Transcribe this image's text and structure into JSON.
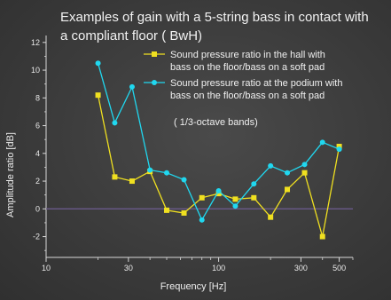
{
  "chart_data": {
    "type": "line",
    "title_lines": [
      "Examples of gain with a 5-string bass in contact with",
      "a compliant floor  ( BwH)"
    ],
    "xlabel": "Frequency [Hz]",
    "ylabel": "Amplitude ratio [dB]",
    "x_scale": "log",
    "xlim": [
      10,
      600
    ],
    "ylim": [
      -3.5,
      12.5
    ],
    "x_ticks": [
      10,
      30,
      100,
      300,
      500
    ],
    "y_ticks": [
      -2,
      0,
      2,
      4,
      6,
      8,
      10,
      12
    ],
    "x": [
      20,
      25,
      31.5,
      40,
      50,
      63,
      80,
      100,
      125,
      160,
      200,
      250,
      315,
      400,
      500
    ],
    "series": [
      {
        "name": "Sound pressure ratio in the hall with bass on the floor/bass on a soft pad",
        "name_lines": [
          "Sound pressure ratio in the hall with",
          "bass on the floor/bass on a soft pad"
        ],
        "color": "#f0e020",
        "marker": "square",
        "values": [
          8.2,
          2.3,
          2.0,
          2.7,
          -0.1,
          -0.3,
          0.8,
          1.1,
          0.7,
          0.8,
          -0.6,
          1.4,
          2.6,
          -2.0,
          4.5
        ]
      },
      {
        "name": "Sound pressure ratio at the podium with bass on the floor/bass on a soft pad",
        "name_lines": [
          "Sound pressure ratio at the podium with",
          "bass on the floor/bass on a soft pad"
        ],
        "color": "#20d8f0",
        "marker": "circle",
        "values": [
          10.5,
          6.2,
          8.8,
          2.8,
          2.6,
          2.1,
          -0.8,
          1.3,
          0.2,
          1.8,
          3.1,
          2.6,
          3.2,
          4.8,
          4.3
        ]
      }
    ],
    "zero_line": true,
    "annotation": "( 1/3-octave bands)",
    "grid": false,
    "legend_position": "top-right"
  }
}
